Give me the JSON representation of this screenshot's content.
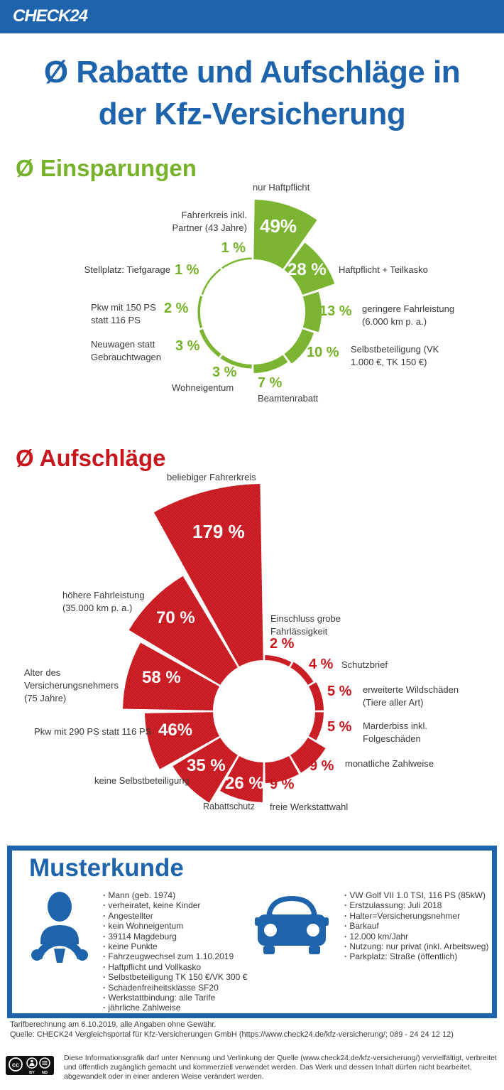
{
  "brand": {
    "logo_text": "CHECK24"
  },
  "colors": {
    "blue": "#1d64ac",
    "green": "#76b22a",
    "red": "#c8161d",
    "text": "#3a3a39"
  },
  "title": {
    "line1": "Ø Rabatte und Aufschläge in",
    "line2": "der Kfz-Versicherung"
  },
  "chart_data": [
    {
      "type": "rose",
      "name": "einsparungen",
      "title": "Ø Einsparungen",
      "unit": "%",
      "color": "#76b22a",
      "direction": "clockwise",
      "start_angle_deg": 0,
      "segment_angle_deg": 36,
      "segments": [
        {
          "label": "nur Haftpflicht",
          "value": 49,
          "value_label": "49%"
        },
        {
          "label": "Haftpflicht + Teilkasko",
          "value": 28,
          "value_label": "28 %"
        },
        {
          "label": "geringere Fahrleistung (6.000 km p. a.)",
          "value": 13,
          "value_label": "13 %"
        },
        {
          "label": "Selbstbeteiligung (VK 1.000 €, TK 150 €)",
          "value": 10,
          "value_label": "10 %"
        },
        {
          "label": "Beamtenrabatt",
          "value": 7,
          "value_label": "7 %"
        },
        {
          "label": "Wohneigentum",
          "value": 3,
          "value_label": "3 %"
        },
        {
          "label": "Neuwagen statt Gebrauchtwagen",
          "value": 3,
          "value_label": "3 %"
        },
        {
          "label": "Pkw mit 150 PS statt 116 PS",
          "value": 2,
          "value_label": "2 %"
        },
        {
          "label": "Stellplatz: Tiefgarage",
          "value": 1,
          "value_label": "1 %"
        },
        {
          "label": "Fahrerkreis inkl. Partner (43 Jahre)",
          "value": 1,
          "value_label": "1 %"
        }
      ]
    },
    {
      "type": "rose",
      "name": "aufschlaege",
      "title": "Ø Aufschläge",
      "unit": "%",
      "color": "#c8161d",
      "direction": "clockwise",
      "start_angle_deg": 0,
      "segment_angle_deg": 30,
      "segments": [
        {
          "label": "Einschluss grobe Fahrlässigkeit",
          "value": 2,
          "value_label": "2 %"
        },
        {
          "label": "Schutzbrief",
          "value": 4,
          "value_label": "4 %"
        },
        {
          "label": "erweiterte Wildschäden (Tiere aller Art)",
          "value": 5,
          "value_label": "5 %"
        },
        {
          "label": "Marderbiss inkl. Folgeschäden",
          "value": 5,
          "value_label": "5 %"
        },
        {
          "label": "monatliche Zahlweise",
          "value": 9,
          "value_label": "9 %"
        },
        {
          "label": "freie Werkstattwahl",
          "value": 9,
          "value_label": "9 %"
        },
        {
          "label": "Rabattschutz",
          "value": 26,
          "value_label": "26 %"
        },
        {
          "label": "keine Selbstbeteiligung",
          "value": 35,
          "value_label": "35 %"
        },
        {
          "label": "Pkw mit 290 PS statt 116 PS",
          "value": 46,
          "value_label": "46%"
        },
        {
          "label": "Alter des Versicherungsnehmers (75 Jahre)",
          "value": 58,
          "value_label": "58 %"
        },
        {
          "label": "höhere Fahrleistung (35.000 km p. a.)",
          "value": 70,
          "value_label": "70 %"
        },
        {
          "label": "beliebiger Fahrerkreis",
          "value": 179,
          "value_label": "179 %"
        }
      ]
    }
  ],
  "musterkunde": {
    "heading": "Musterkunde",
    "person_items": [
      "Mann (geb. 1974)",
      "verheiratet, keine Kinder",
      "Angestellter",
      "kein Wohneigentum",
      "39114 Magdeburg",
      "keine Punkte",
      "Fahrzeugwechsel zum 1.10.2019",
      "Haftpflicht und Vollkasko",
      "Selbstbeteiligung TK 150 €/VK 300 €",
      "Schadenfreiheitsklasse SF20",
      "Werkstattbindung: alle Tarife",
      "jährliche Zahlweise"
    ],
    "vehicle_items": [
      "VW Golf VII 1.0 TSI, 116 PS (85kW)",
      "Erstzulassung: Juli 2018",
      "Halter=Versicherungsnehmer",
      "Barkauf",
      "12.000 km/Jahr",
      "Nutzung: nur privat (inkl. Arbeitsweg)",
      "Parkplatz: Straße (öffentlich)"
    ]
  },
  "footer": {
    "line1": "Tarifberechnung am 6.10.2019, alle Angaben ohne Gewähr.",
    "line2": "Quelle: CHECK24 Vergleichsportal für Kfz-Versicherungen GmbH (https://www.check24.de/kfz-versicherung/; 089 - 24 24 12 12)"
  },
  "license": {
    "badge_cc": "cc",
    "badge_by": "BY",
    "badge_nd": "ND",
    "text": "Diese Informationsgrafik darf unter Nennung und Verlinkung der Quelle (www.check24.de/kfz-versicherung/) vervielfältigt, verbreitet und öffentlich zugänglich gemacht und kommerziell verwendet werden. Das Werk und dessen Inhalt dürfen nicht bearbeitet, abgewandelt oder in einer anderen Weise verändert werden."
  }
}
